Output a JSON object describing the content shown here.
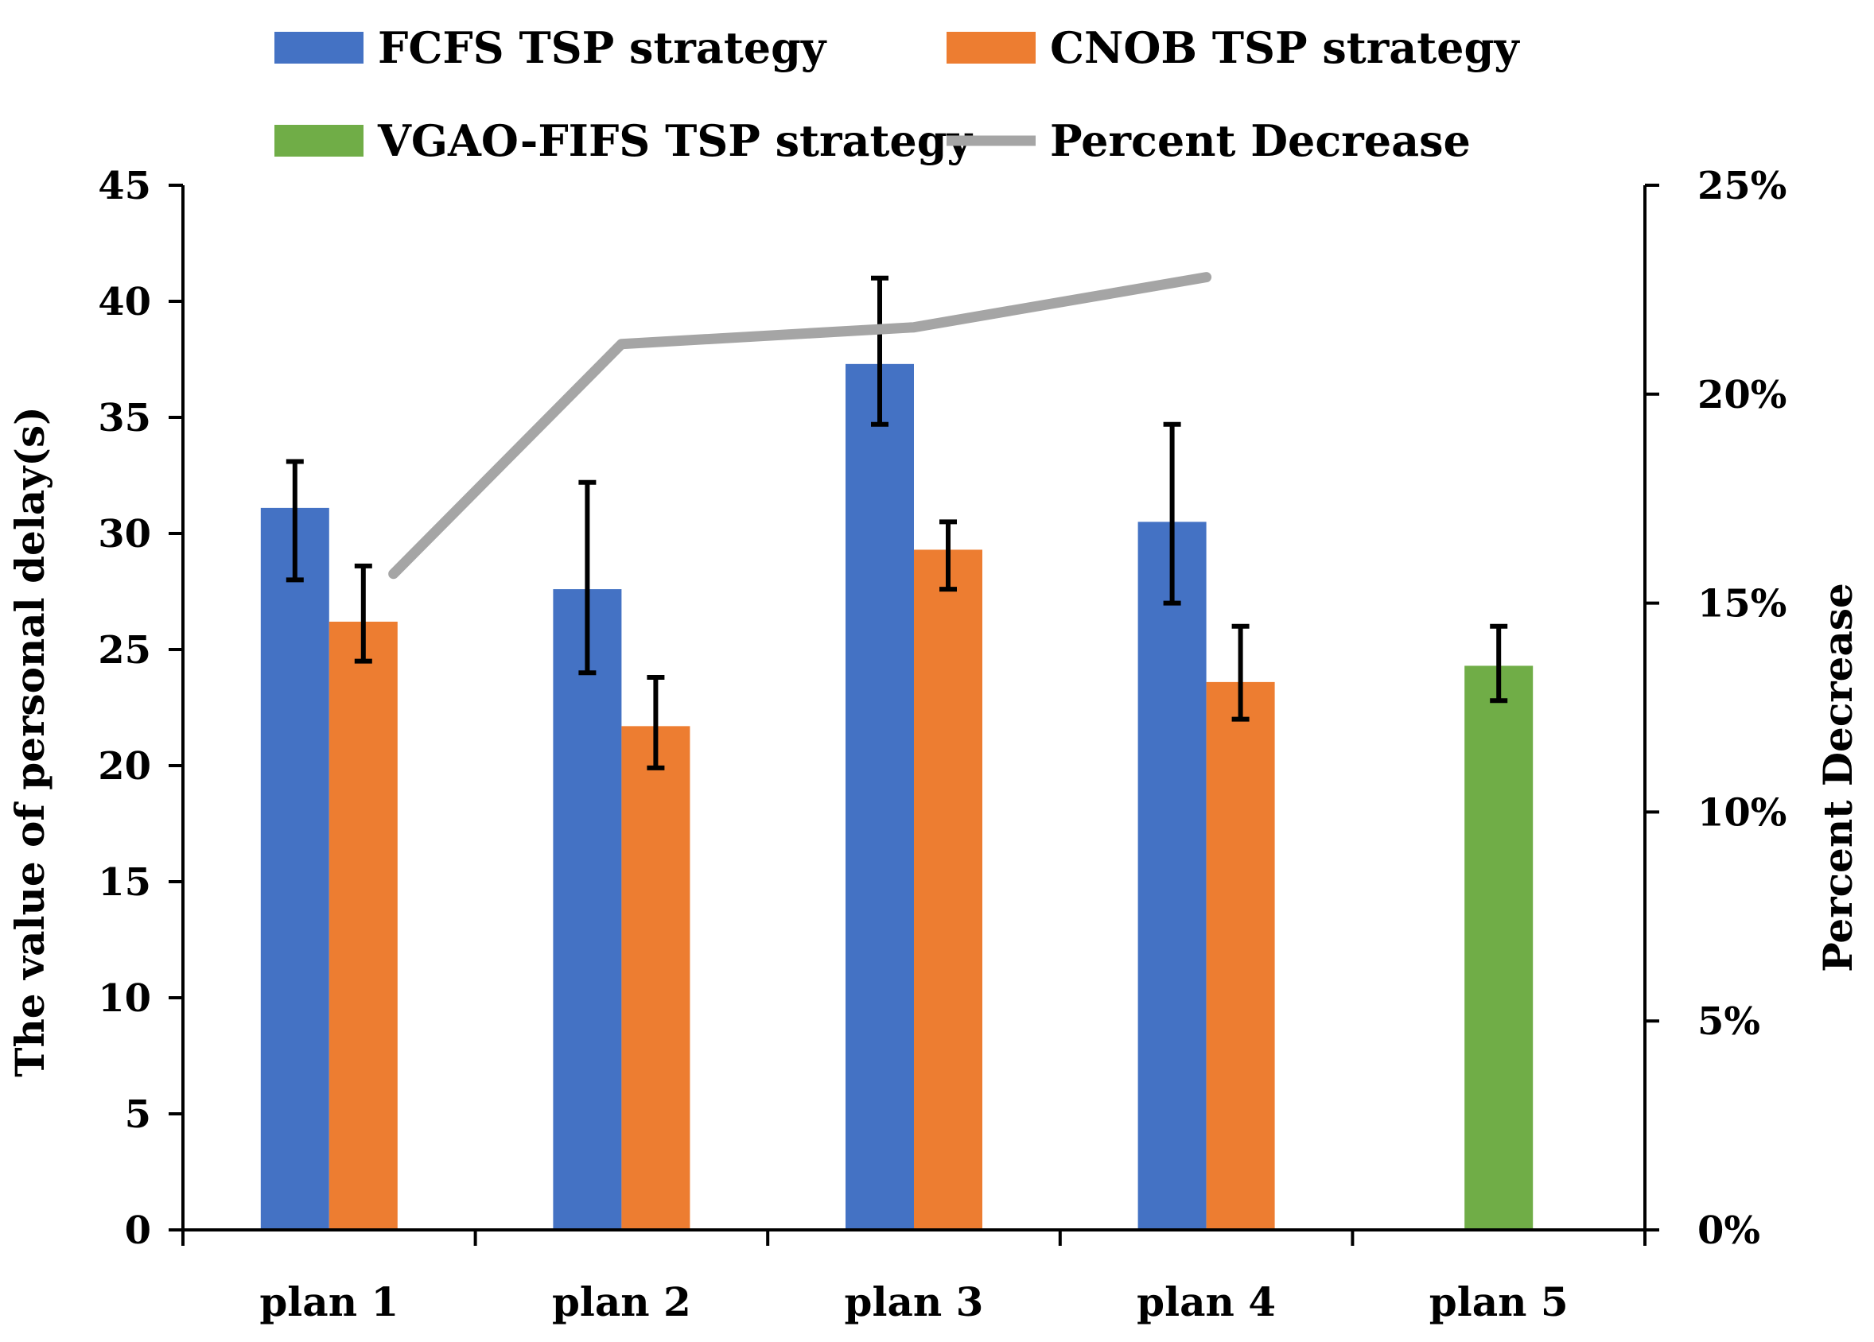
{
  "chart_data": {
    "type": "bar",
    "categories": [
      "plan 1",
      "plan 2",
      "plan 3",
      "plan 4",
      "plan 5"
    ],
    "series": [
      {
        "name": "FCFS TSP strategy",
        "color": "#4472C4",
        "values": [
          31.1,
          27.6,
          37.3,
          30.5,
          null
        ],
        "error_low": [
          28.0,
          24.0,
          34.7,
          27.0,
          null
        ],
        "error_high": [
          33.1,
          32.2,
          41.0,
          34.7,
          null
        ]
      },
      {
        "name": "CNOB TSP strategy",
        "color": "#ED7D31",
        "values": [
          26.2,
          21.7,
          29.3,
          23.6,
          null
        ],
        "error_low": [
          24.5,
          19.9,
          27.6,
          22.0,
          null
        ],
        "error_high": [
          28.6,
          23.8,
          30.5,
          26.0,
          null
        ]
      },
      {
        "name": "VGAO-FIFS TSP strategy",
        "color": "#70AD47",
        "values": [
          null,
          null,
          null,
          null,
          24.3
        ],
        "error_low": [
          null,
          null,
          null,
          null,
          22.8
        ],
        "error_high": [
          null,
          null,
          null,
          null,
          26.0
        ]
      }
    ],
    "line_series": {
      "name": "Percent Decrease",
      "color": "#A5A5A5",
      "axis": "secondary",
      "points": [
        {
          "x": 1.22,
          "y": 15.7
        },
        {
          "x": 2.0,
          "y": 21.2
        },
        {
          "x": 3.0,
          "y": 21.6
        },
        {
          "x": 4.0,
          "y": 22.8
        }
      ]
    },
    "ylabel": "The value of personal delay(s)",
    "ylim": [
      0,
      45
    ],
    "yticks": [
      0,
      5,
      10,
      15,
      20,
      25,
      30,
      35,
      40,
      45
    ],
    "y2label": "Percent Decrease",
    "y2lim": [
      0,
      25
    ],
    "y2ticks": [
      "0%",
      "5%",
      "10%",
      "15%",
      "20%",
      "25%"
    ],
    "y2tick_values": [
      0,
      5,
      10,
      15,
      20,
      25
    ],
    "legend": {
      "position": "top",
      "entries": [
        {
          "label": "FCFS TSP strategy",
          "kind": "bar",
          "color": "#4472C4"
        },
        {
          "label": "CNOB TSP strategy",
          "kind": "bar",
          "color": "#ED7D31"
        },
        {
          "label": "VGAO-FIFS TSP strategy",
          "kind": "bar",
          "color": "#70AD47"
        },
        {
          "label": "Percent Decrease",
          "kind": "line",
          "color": "#A5A5A5"
        }
      ]
    },
    "grid": false
  }
}
